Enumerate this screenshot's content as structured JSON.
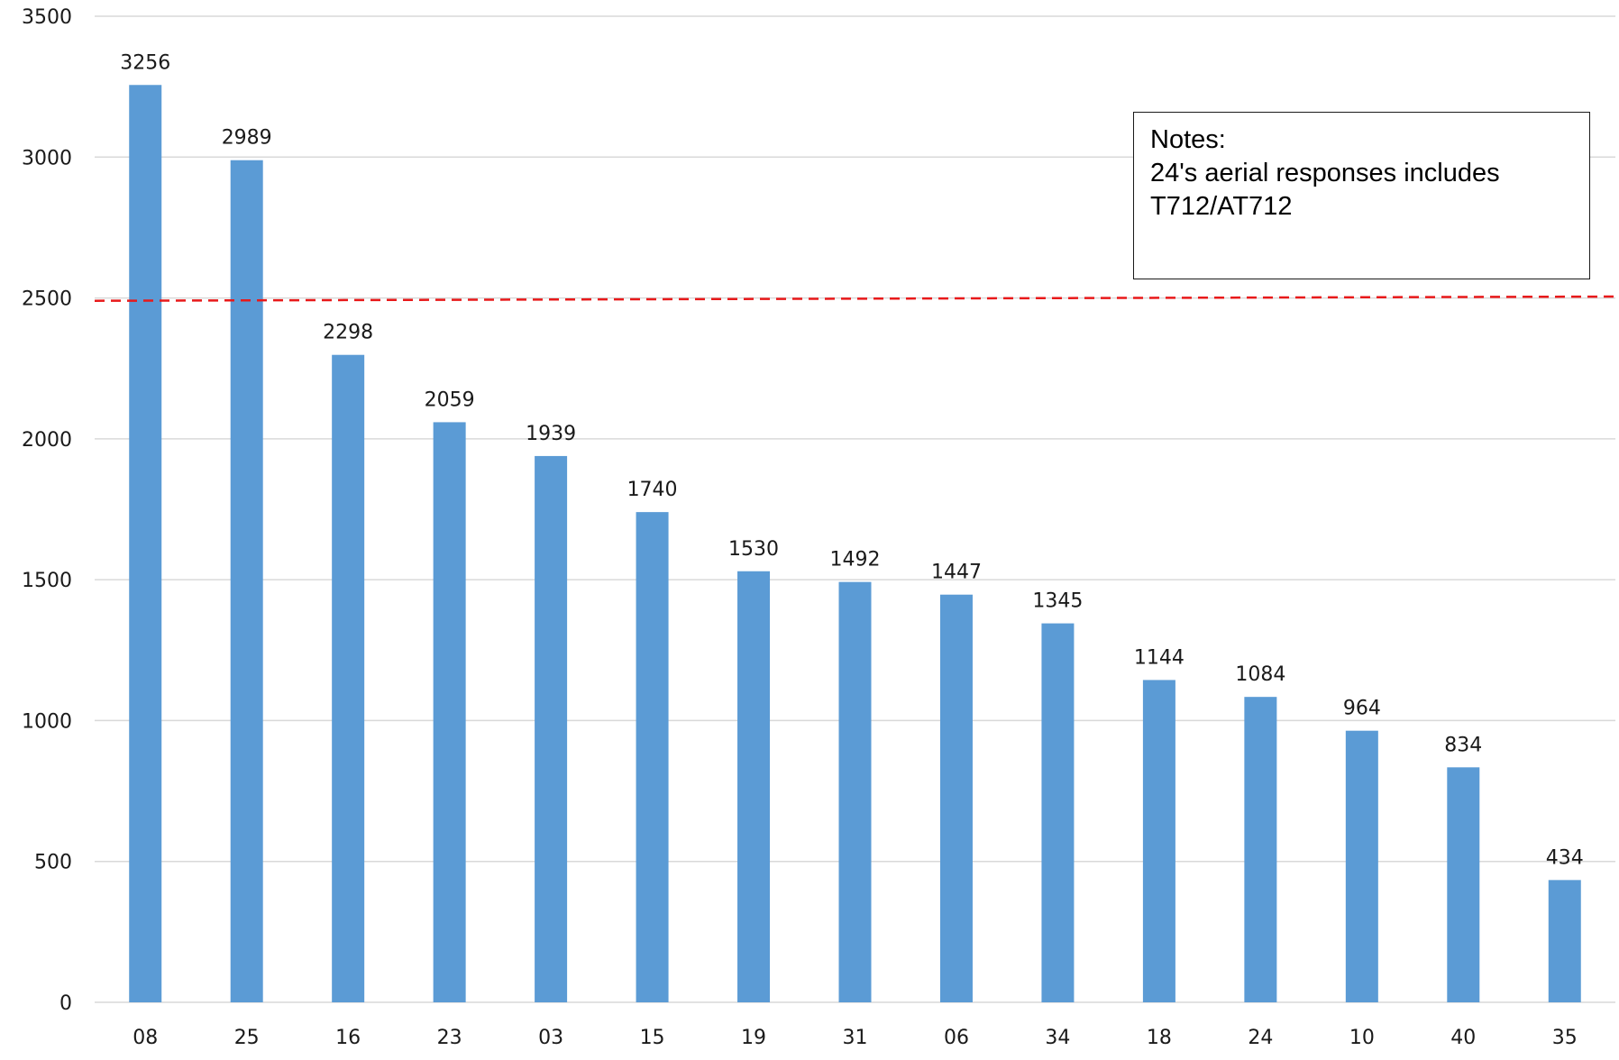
{
  "chart_data": {
    "type": "bar",
    "title": "",
    "xlabel": "",
    "ylabel": "",
    "categories": [
      "08",
      "25",
      "16",
      "23",
      "03",
      "15",
      "19",
      "31",
      "06",
      "34",
      "18",
      "24",
      "10",
      "40",
      "35"
    ],
    "values": [
      3256,
      2989,
      2298,
      2059,
      1939,
      1740,
      1530,
      1492,
      1447,
      1345,
      1144,
      1084,
      964,
      834,
      434
    ],
    "ylim": [
      0,
      3500
    ],
    "yticks": [
      0,
      500,
      1000,
      1500,
      2000,
      2500,
      3000,
      3500
    ],
    "grid": true,
    "legend": "none",
    "bar_color": "#5b9bd5",
    "reference_line": {
      "y_start": 2490,
      "y_end": 2505,
      "color": "#e8191a",
      "style": "dashed"
    },
    "annotation": {
      "title": "Notes:",
      "lines": [
        "24's aerial responses includes",
        "T712/AT712"
      ]
    }
  }
}
